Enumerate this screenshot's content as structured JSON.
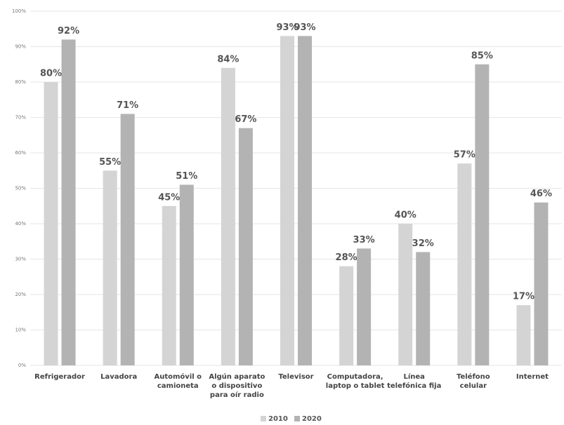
{
  "chart_data": {
    "type": "bar",
    "categories": [
      "Refrigerador",
      "Lavadora",
      "Automóvil o camioneta",
      "Algún aparato o dispositivo para oír radio",
      "Televisor",
      "Computadora, laptop o tablet",
      "Línea telefónica fija",
      "Teléfono celular",
      "Internet"
    ],
    "series": [
      {
        "name": "2010",
        "color": "#d4d4d4",
        "values": [
          80,
          55,
          45,
          84,
          93,
          28,
          40,
          57,
          17
        ],
        "value_labels": [
          "80%",
          "55%",
          "45%",
          "84%",
          "93%",
          "28%",
          "40%",
          "57%",
          "17%"
        ]
      },
      {
        "name": "2020",
        "color": "#b3b3b3",
        "values": [
          92,
          71,
          51,
          67,
          93,
          33,
          32,
          85,
          46
        ],
        "value_labels": [
          "92%",
          "71%",
          "51%",
          "67%",
          "93%",
          "33%",
          "32%",
          "85%",
          "46%"
        ]
      }
    ],
    "ylim": [
      0,
      100
    ],
    "yticks": [
      {
        "value": 0,
        "label": "0%"
      },
      {
        "value": 10,
        "label": "10%"
      },
      {
        "value": 20,
        "label": "20%"
      },
      {
        "value": 30,
        "label": "30%"
      },
      {
        "value": 40,
        "label": "40%"
      },
      {
        "value": 50,
        "label": "50%"
      },
      {
        "value": 60,
        "label": "60%"
      },
      {
        "value": 70,
        "label": "70%"
      },
      {
        "value": 80,
        "label": "80%"
      },
      {
        "value": 90,
        "label": "90%"
      },
      {
        "value": 100,
        "label": "100%"
      }
    ],
    "grid": true,
    "legend": "bottom"
  }
}
